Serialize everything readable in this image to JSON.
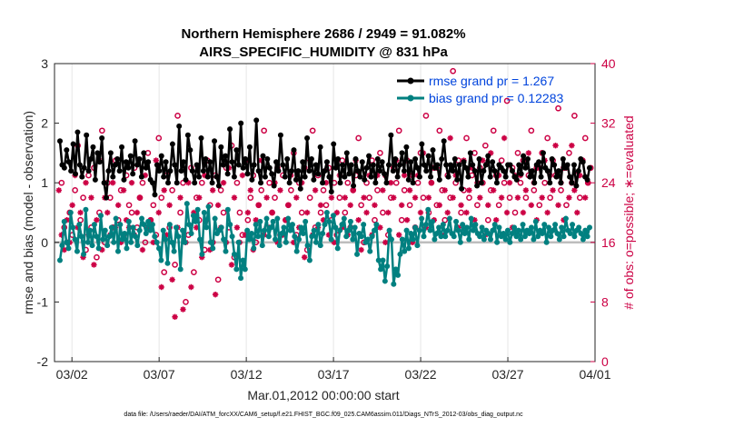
{
  "chart_data": {
    "type": "line",
    "title": "Northern Hemisphere 2686 / 2949 = 91.082%",
    "subtitle": "AIRS_SPECIFIC_HUMIDITY @ 831 hPa",
    "xlabel": "Mar.01,2012 00:00:00 start",
    "ylabel": "rmse and bias (model - observation)",
    "ylabel_right": "# of obs: o=possible; ∗=evaluated",
    "xlim": [
      0.5,
      31.5
    ],
    "ylim": [
      -2,
      3
    ],
    "ylim_right": [
      0,
      40
    ],
    "x_tick_values": [
      1.5,
      6.5,
      11.5,
      16.5,
      21.5,
      26.5,
      31.5
    ],
    "x_tick_labels": [
      "03/02",
      "03/07",
      "03/12",
      "03/17",
      "03/22",
      "03/27",
      "04/01"
    ],
    "y_ticks": [
      "-2",
      "-1",
      "0",
      "1",
      "2",
      "3"
    ],
    "y_ticks_right": [
      "0",
      "8",
      "16",
      "24",
      "32",
      "40"
    ],
    "legend": {
      "rmse_label": "rmse grand pr = 1.267",
      "bias_label": "bias grand pr = 0.12283"
    },
    "footnote": "data file: /Users/raeder/DAI/ATM_forcXX/CAM6_setup/f.e21.FHIST_BGC.f09_025.CAM6assim.011/Diags_NTrS_2012-03/obs_diag_output.nc",
    "series": [
      {
        "name": "rmse",
        "color": "#000000",
        "values": [
          1.7,
          1.3,
          1.25,
          1.55,
          1.35,
          1.2,
          1.65,
          1.15,
          1.85,
          1.3,
          1.1,
          1.25,
          1.8,
          1.2,
          1.4,
          1.6,
          1.05,
          1.5,
          1.35,
          1.75,
          1.0,
          0.75,
          1.2,
          1.5,
          1.1,
          1.3,
          1.4,
          1.2,
          1.6,
          1.05,
          1.35,
          1.25,
          1.45,
          1.15,
          1.7,
          1.3,
          1.4,
          1.1,
          1.5,
          1.25,
          1.35,
          1.05,
          1.0,
          0.8,
          1.3,
          1.2,
          1.45,
          1.1,
          1.35,
          1.0,
          1.2,
          1.65,
          1.3,
          1.0,
          1.95,
          1.2,
          1.35,
          1.05,
          1.8,
          1.55,
          1.2,
          1.0,
          1.3,
          1.1,
          1.75,
          1.2,
          1.4,
          1.1,
          1.35,
          1.0,
          1.7,
          1.1,
          0.95,
          1.6,
          1.3,
          1.45,
          1.15,
          1.9,
          1.35,
          1.1,
          1.55,
          1.3,
          2.0,
          1.25,
          1.4,
          1.15,
          1.6,
          1.05,
          1.3,
          2.05,
          1.2,
          1.0,
          1.45,
          1.1,
          1.4,
          1.25,
          1.15,
          0.95,
          1.35,
          1.2,
          1.8,
          1.3,
          1.1,
          1.4,
          1.0,
          1.2,
          1.55,
          1.05,
          1.2,
          0.9,
          1.35,
          1.1,
          1.75,
          1.2,
          1.4,
          1.05,
          1.3,
          1.15,
          1.6,
          1.0,
          1.2,
          1.35,
          1.1,
          0.85,
          1.65,
          1.25,
          1.4,
          1.0,
          1.3,
          1.1,
          1.5,
          1.15,
          1.3,
          0.95,
          1.4,
          1.2,
          1.1,
          1.35,
          1.05,
          1.25,
          1.45,
          1.1,
          1.3,
          1.0,
          1.4,
          1.2,
          1.35,
          1.15,
          1.0,
          1.3,
          1.8,
          1.2,
          1.4,
          1.1,
          1.3,
          1.5,
          1.2,
          1.6,
          1.05,
          1.35,
          1.0,
          1.4,
          1.25,
          1.1,
          1.65,
          1.3,
          1.2,
          1.45,
          1.1,
          1.55,
          1.25,
          1.3,
          1.05,
          1.4,
          1.7,
          1.3,
          1.1,
          1.3,
          1.2,
          1.4,
          1.05,
          1.3,
          0.9,
          1.35,
          1.25,
          1.1,
          1.5,
          1.3,
          1.2,
          0.95,
          1.4,
          1.0,
          1.2,
          1.3,
          1.45,
          1.1,
          1.35,
          1.2,
          1.0,
          1.3,
          1.25,
          1.2,
          1.1,
          1.3,
          1.3,
          1.2,
          1.1,
          1.05,
          1.3,
          1.15,
          1.45,
          1.25,
          1.4,
          1.1,
          1.2,
          1.0,
          1.3,
          1.35,
          1.1,
          1.5,
          1.25,
          1.2,
          1.0,
          1.4,
          1.3,
          1.1,
          1.2,
          1.0,
          1.4,
          1.25,
          1.3,
          1.1,
          1.0,
          1.3,
          0.95,
          1.2,
          1.4,
          1.35,
          1.1,
          1.05,
          1.25
        ]
      },
      {
        "name": "bias",
        "color": "#008080",
        "values": [
          -0.3,
          -0.05,
          0.35,
          0.0,
          -0.1,
          0.5,
          0.25,
          0.05,
          -0.15,
          0.3,
          0.1,
          -0.2,
          0.55,
          0.0,
          0.2,
          -0.05,
          0.3,
          0.1,
          -0.1,
          0.45,
          0.05,
          0.2,
          -0.05,
          0.1,
          0.25,
          0.0,
          0.4,
          -0.15,
          0.3,
          0.05,
          0.15,
          -0.1,
          0.35,
          0.0,
          0.25,
          0.1,
          -0.05,
          0.2,
          0.4,
          0.3,
          0.15,
          0.35,
          0.2,
          0.3,
          0.1,
          0.0,
          -0.1,
          -0.3,
          0.2,
          0.05,
          -0.35,
          0.3,
          0.0,
          -0.15,
          0.25,
          0.1,
          -0.45,
          0.2,
          0.0,
          0.65,
          0.3,
          0.15,
          0.45,
          0.35,
          0.55,
          0.05,
          -0.2,
          0.5,
          0.25,
          0.6,
          0.0,
          -0.1,
          0.4,
          0.15,
          0.2,
          0.25,
          0.05,
          -0.15,
          0.55,
          0.3,
          0.1,
          -0.2,
          -0.45,
          0.0,
          -0.6,
          -0.3,
          -0.45,
          0.2,
          0.05,
          0.15,
          -0.1,
          0.3,
          0.1,
          0.35,
          -0.05,
          0.2,
          0.4,
          0.1,
          0.25,
          0.35,
          0.05,
          0.4,
          -0.05,
          0.15,
          0.25,
          0.0,
          0.4,
          0.2,
          0.3,
          0.1,
          -0.15,
          0.05,
          0.25,
          0.15,
          0.35,
          -0.05,
          -0.3,
          0.1,
          0.2,
          0.0,
          0.3,
          -0.05,
          0.15,
          0.3,
          0.5,
          0.35,
          0.05,
          0.45,
          0.25,
          -0.1,
          0.2,
          0.3,
          0.4,
          0.1,
          0.2,
          0.35,
          0.05,
          0.25,
          -0.2,
          0.15,
          0.1,
          0.3,
          0.0,
          0.05,
          -0.15,
          0.1,
          0.2,
          0.3,
          -0.3,
          -0.45,
          -0.3,
          -0.65,
          -0.4,
          0.2,
          0.05,
          -0.7,
          -0.45,
          -0.55,
          -0.2,
          0.05,
          -0.15,
          0.2,
          -0.1,
          0.15,
          0.05,
          0.25,
          -0.05,
          0.2,
          0.4,
          0.1,
          0.3,
          0.55,
          0.2,
          0.35,
          0.05,
          0.15,
          0.25,
          0.1,
          0.3,
          0.1,
          0.2,
          0.4,
          0.15,
          0.1,
          0.35,
          0.2,
          0.0,
          0.3,
          0.15,
          0.25,
          0.05,
          0.4,
          0.2,
          0.3,
          0.15,
          0.1,
          0.25,
          0.05,
          0.2,
          0.15,
          0.05,
          0.2,
          0.3,
          0.0,
          0.25,
          0.1,
          0.15,
          0.05,
          0.2,
          0.0,
          0.15,
          0.25,
          0.1,
          0.2,
          0.05,
          0.3,
          0.1,
          0.2,
          0.15,
          0.25,
          0.05,
          0.35,
          0.1,
          0.2,
          0.15,
          0.3,
          0.0,
          0.25,
          0.1,
          0.2,
          0.3,
          0.15,
          0.05,
          0.25,
          0.1,
          0.4,
          0.2,
          0.15,
          0.3,
          0.1,
          0.2,
          0.25,
          0.15,
          0.05,
          0.2,
          0.1,
          0.25
        ]
      },
      {
        "name": "obs_possible",
        "color": "#cc0044",
        "marker": "circle",
        "values": [
          24,
          18,
          16,
          20,
          17,
          23,
          29,
          19,
          22,
          15,
          25,
          18,
          26,
          14,
          20,
          31,
          16,
          24,
          22,
          18,
          27,
          19,
          23,
          17,
          25,
          21,
          20,
          26,
          18,
          22,
          24,
          16,
          28,
          19,
          21,
          17,
          30,
          22,
          12,
          25,
          18,
          23,
          13,
          33,
          20,
          24,
          8,
          17,
          26,
          12,
          22,
          19,
          24,
          15,
          27,
          21,
          16,
          25,
          11,
          23,
          20,
          26,
          18,
          29,
          14,
          24,
          20,
          17,
          27,
          19,
          22,
          25,
          16,
          21,
          23,
          31,
          18,
          24,
          20,
          22,
          26,
          17,
          25,
          19,
          21,
          23,
          28,
          17,
          24,
          20,
          26,
          15,
          22,
          31,
          18,
          25,
          20,
          23,
          21,
          26,
          19,
          24,
          17,
          22,
          27,
          20,
          24,
          18,
          23,
          25,
          30,
          21,
          16,
          24,
          22,
          27,
          19,
          23,
          28,
          20,
          25,
          17,
          22,
          26,
          24,
          31,
          19,
          23,
          27,
          21,
          25,
          18,
          24,
          28,
          22,
          33,
          20,
          24,
          26,
          21,
          31,
          23,
          19,
          25,
          22,
          39,
          24,
          27,
          20,
          23,
          30,
          22,
          25,
          28,
          21,
          26,
          24,
          29,
          19,
          23,
          31,
          25,
          21,
          27,
          24,
          35,
          22,
          26,
          20,
          28,
          24,
          27,
          22,
          25,
          31,
          23,
          26,
          21,
          28,
          24,
          30,
          22,
          27,
          25,
          34,
          23,
          26,
          21,
          28,
          24,
          33,
          25,
          22,
          27,
          30,
          24,
          26
        ]
      },
      {
        "name": "obs_evaluated",
        "color": "#cc0044",
        "marker": "asterisk",
        "values": [
          23,
          17,
          15,
          19,
          16,
          21,
          25,
          18,
          20,
          14,
          24,
          17,
          22,
          13,
          19,
          27,
          15,
          22,
          20,
          17,
          24,
          18,
          21,
          16,
          23,
          19,
          18,
          24,
          17,
          20,
          22,
          15,
          25,
          18,
          19,
          16,
          27,
          20,
          10,
          23,
          17,
          21,
          11,
          6,
          18,
          22,
          7,
          16,
          24,
          10,
          20,
          18,
          22,
          14,
          25,
          19,
          15,
          23,
          9,
          21,
          18,
          24,
          16,
          26,
          13,
          22,
          18,
          16,
          25,
          17,
          20,
          23,
          15,
          19,
          21,
          27,
          17,
          22,
          18,
          20,
          24,
          16,
          23,
          17,
          19,
          21,
          25,
          16,
          22,
          18,
          24,
          14,
          20,
          27,
          17,
          23,
          18,
          21,
          19,
          24,
          17,
          22,
          16,
          20,
          25,
          18,
          22,
          17,
          21,
          23,
          27,
          19,
          15,
          22,
          20,
          25,
          17,
          21,
          25,
          18,
          23,
          16,
          20,
          24,
          22,
          27,
          17,
          21,
          25,
          19,
          23,
          16,
          22,
          25,
          20,
          28,
          18,
          22,
          24,
          19,
          26,
          21,
          17,
          23,
          20,
          30,
          22,
          25,
          18,
          21,
          27,
          20,
          23,
          26,
          19,
          24,
          22,
          27,
          17,
          21,
          28,
          23,
          19,
          25,
          22,
          30,
          20,
          24,
          18,
          25,
          22,
          25,
          20,
          23,
          28,
          21,
          24,
          19,
          26,
          22,
          27,
          20,
          25,
          23,
          29,
          21,
          24,
          19,
          26,
          22,
          29,
          23,
          20,
          25,
          27,
          22,
          24
        ]
      }
    ]
  }
}
